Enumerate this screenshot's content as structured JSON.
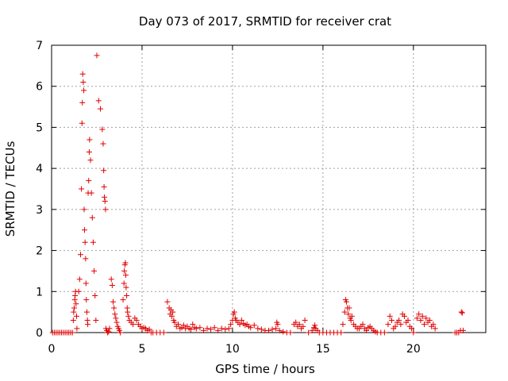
{
  "chart_data": {
    "type": "scatter",
    "title": "Day 073 of 2017, SRMTID for receiver crat",
    "xlabel": "GPS time / hours",
    "ylabel": "SRMTID / TECUs",
    "xlim": [
      0,
      24
    ],
    "ylim": [
      0,
      7
    ],
    "xticks": [
      0,
      5,
      10,
      15,
      20
    ],
    "yticks": [
      0,
      1,
      2,
      3,
      4,
      5,
      6,
      7
    ],
    "xtick_labels": [
      "0",
      "5",
      "10",
      "15",
      "20"
    ],
    "ytick_labels": [
      "0",
      "1",
      "2",
      "3",
      "4",
      "5",
      "6",
      "7"
    ],
    "grid": true,
    "marker": "+",
    "color": "#e00000",
    "series": [
      {
        "x": [
          0.05,
          0.15,
          0.25,
          0.35,
          0.45,
          0.55,
          0.65,
          0.75,
          0.85,
          0.95,
          1.05,
          1.15,
          1.2,
          1.22,
          1.25,
          1.28,
          1.3,
          1.32,
          1.35,
          1.38,
          1.4,
          1.5,
          1.55,
          1.6,
          1.65,
          1.68,
          1.7,
          1.72,
          1.75,
          1.78,
          1.8,
          1.82,
          1.85,
          1.88,
          1.9,
          1.92,
          1.95,
          1.98,
          2.0,
          2.02,
          2.05,
          2.08,
          2.1,
          2.15,
          2.2,
          2.25,
          2.3,
          2.35,
          2.4,
          2.45,
          2.5,
          2.6,
          2.7,
          2.8,
          2.85,
          2.88,
          2.9,
          2.92,
          2.95,
          2.98,
          3.0,
          3.05,
          3.1,
          3.15,
          3.2,
          3.3,
          3.35,
          3.4,
          3.45,
          3.5,
          3.55,
          3.6,
          3.65,
          3.7,
          3.75,
          3.8,
          3.95,
          4.0,
          4.02,
          4.05,
          4.08,
          4.1,
          4.12,
          4.15,
          4.18,
          4.2,
          4.25,
          4.3,
          4.4,
          4.5,
          4.6,
          4.7,
          4.8,
          4.9,
          5.0,
          5.1,
          5.2,
          5.3,
          5.4,
          5.5,
          5.6,
          5.8,
          6.0,
          6.2,
          6.4,
          6.5,
          6.55,
          6.6,
          6.65,
          6.7,
          6.75,
          6.8,
          6.9,
          7.0,
          7.1,
          7.2,
          7.3,
          7.4,
          7.5,
          7.6,
          7.7,
          7.8,
          7.9,
          8.0,
          8.2,
          8.4,
          8.6,
          8.8,
          9.0,
          9.2,
          9.4,
          9.6,
          9.8,
          9.9,
          10.0,
          10.05,
          10.1,
          10.15,
          10.2,
          10.3,
          10.4,
          10.5,
          10.6,
          10.7,
          10.8,
          10.9,
          11.0,
          11.2,
          11.4,
          11.6,
          11.8,
          12.0,
          12.2,
          12.4,
          12.45,
          12.5,
          12.6,
          12.8,
          13.0,
          13.2,
          13.4,
          13.5,
          13.6,
          13.7,
          13.8,
          13.9,
          14.0,
          14.2,
          14.4,
          14.5,
          14.55,
          14.6,
          14.7,
          14.8,
          15.0,
          15.2,
          15.4,
          15.6,
          15.8,
          16.0,
          16.1,
          16.2,
          16.25,
          16.3,
          16.35,
          16.4,
          16.45,
          16.5,
          16.55,
          16.6,
          16.7,
          16.8,
          16.9,
          17.0,
          17.1,
          17.2,
          17.3,
          17.4,
          17.5,
          17.6,
          17.7,
          17.8,
          17.9,
          18.0,
          18.2,
          18.4,
          18.6,
          18.7,
          18.8,
          18.9,
          19.0,
          19.1,
          19.2,
          19.3,
          19.4,
          19.5,
          19.6,
          19.7,
          19.8,
          19.9,
          20.0,
          20.2,
          20.3,
          20.4,
          20.5,
          20.6,
          20.7,
          20.8,
          20.9,
          21.0,
          21.1,
          21.2,
          22.3,
          22.4,
          22.5,
          22.6,
          22.65,
          22.7,
          22.75
        ],
        "y": [
          0,
          0,
          0,
          0,
          0,
          0,
          0,
          0,
          0,
          0,
          0,
          0,
          0.3,
          0.5,
          0.6,
          0.8,
          0.9,
          1.0,
          0.7,
          0.4,
          0.1,
          1.0,
          1.3,
          1.9,
          3.5,
          5.1,
          5.6,
          6.3,
          6.1,
          5.9,
          3.0,
          2.5,
          2.2,
          1.8,
          1.2,
          0.8,
          0.5,
          0.3,
          0.2,
          3.4,
          3.7,
          4.4,
          4.7,
          4.2,
          3.4,
          2.8,
          2.2,
          1.5,
          0.9,
          0.3,
          6.75,
          5.65,
          5.45,
          4.95,
          4.6,
          3.95,
          3.55,
          3.3,
          3.2,
          3.0,
          0.1,
          0.05,
          0.0,
          0.02,
          0.1,
          1.3,
          1.15,
          0.75,
          0.6,
          0.45,
          0.35,
          0.25,
          0.15,
          0.1,
          0.05,
          0.0,
          0.8,
          1.2,
          1.5,
          1.65,
          1.7,
          1.4,
          1.1,
          0.9,
          0.6,
          0.5,
          0.4,
          0.3,
          0.25,
          0.2,
          0.35,
          0.3,
          0.2,
          0.15,
          0.1,
          0.12,
          0.1,
          0.05,
          0.08,
          0.0,
          0,
          0,
          0,
          0,
          0.75,
          0.6,
          0.45,
          0.55,
          0.4,
          0.5,
          0.3,
          0.25,
          0.15,
          0.2,
          0.1,
          0.12,
          0.18,
          0.1,
          0.15,
          0.1,
          0.08,
          0.2,
          0.12,
          0.1,
          0.12,
          0.05,
          0.1,
          0.08,
          0.12,
          0.05,
          0.1,
          0.08,
          0.1,
          0.2,
          0.3,
          0.45,
          0.5,
          0.35,
          0.3,
          0.25,
          0.2,
          0.3,
          0.22,
          0.18,
          0.2,
          0.15,
          0.12,
          0.18,
          0.1,
          0.08,
          0.05,
          0.05,
          0.08,
          0.1,
          0.25,
          0.2,
          0.05,
          0.02,
          0.0,
          0.0,
          0.2,
          0.25,
          0.15,
          0.2,
          0.1,
          0.15,
          0.3,
          0.0,
          0.05,
          0.12,
          0.18,
          0.1,
          0.05,
          0.0,
          0.0,
          0.0,
          0.0,
          0.0,
          0.0,
          0.0,
          0.2,
          0.5,
          0.8,
          0.75,
          0.6,
          0.45,
          0.6,
          0.35,
          0.3,
          0.4,
          0.2,
          0.15,
          0.1,
          0.1,
          0.15,
          0.2,
          0.1,
          0.05,
          0.12,
          0.15,
          0.1,
          0.05,
          0.02,
          0.0,
          0.0,
          0.0,
          0.2,
          0.4,
          0.3,
          0.1,
          0.15,
          0.25,
          0.3,
          0.2,
          0.45,
          0.4,
          0.25,
          0.3,
          0.15,
          0.1,
          0.0,
          0.35,
          0.45,
          0.3,
          0.4,
          0.2,
          0.35,
          0.25,
          0.3,
          0.15,
          0.2,
          0.1,
          0.0,
          0.0,
          0.0,
          0.05,
          0.5,
          0.48,
          0.05
        ]
      }
    ]
  }
}
